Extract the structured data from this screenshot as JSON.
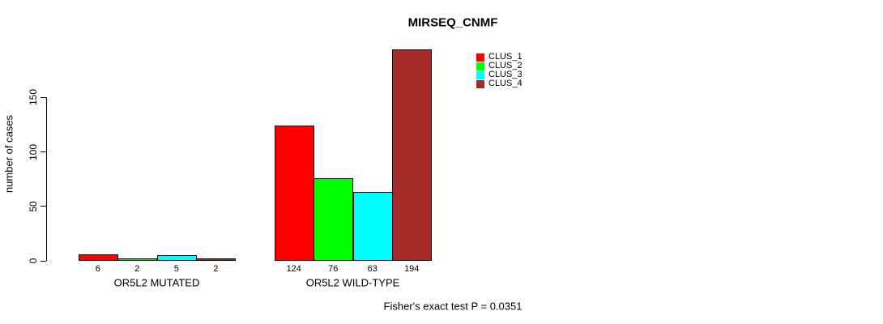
{
  "chart_data": {
    "type": "bar",
    "title": "MIRSEQ_CNMF",
    "ylabel": "number of cases",
    "xlabel": "",
    "categories": [
      "OR5L2 MUTATED",
      "OR5L2 WILD-TYPE"
    ],
    "series": [
      {
        "name": "CLUS_1",
        "color": "#ff0000",
        "values": [
          6,
          124
        ]
      },
      {
        "name": "CLUS_2",
        "color": "#00ff00",
        "values": [
          2,
          76
        ]
      },
      {
        "name": "CLUS_3",
        "color": "#00ffff",
        "values": [
          5,
          63
        ]
      },
      {
        "name": "CLUS_4",
        "color": "#a52a2a",
        "values": [
          2,
          194
        ]
      }
    ],
    "yticks": [
      0,
      50,
      100,
      150
    ],
    "ylim": [
      0,
      199
    ],
    "grid": false,
    "bar_borders": true,
    "bar_value_labels_shown": true,
    "legend_position": "inside-top-right",
    "annotation": "Fisher's exact test P = 0.0351"
  },
  "colors": {
    "background": "#ffffff",
    "axis": "#000000",
    "text": "#000000"
  }
}
